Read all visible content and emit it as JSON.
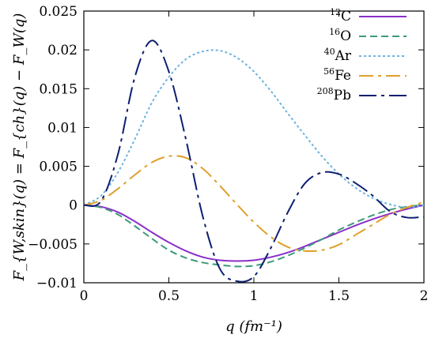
{
  "chart_data": {
    "type": "line",
    "xlabel": "q (fm⁻¹)",
    "ylabel": "F_{W,skin}(q) = F_{ch}(q) − F_W(q)",
    "xlim": [
      0,
      2
    ],
    "ylim": [
      -0.01,
      0.025
    ],
    "x_ticks": [
      0,
      0.5,
      1,
      1.5,
      2
    ],
    "x_tick_labels": [
      "0",
      "0.5",
      "1",
      "1.5",
      "2"
    ],
    "y_ticks": [
      -0.01,
      -0.005,
      0,
      0.005,
      0.01,
      0.015,
      0.02,
      0.025
    ],
    "y_tick_labels": [
      "−0.01",
      "−0.005",
      "0",
      "0.005",
      "0.01",
      "0.015",
      "0.02",
      "0.025"
    ],
    "grid": false,
    "legend_position": "top-right",
    "series": [
      {
        "name": "12C",
        "mass": "12",
        "element": "C",
        "color": "#8b2fc9",
        "dash": "",
        "x": [
          0,
          0.1,
          0.2,
          0.3,
          0.4,
          0.5,
          0.6,
          0.7,
          0.8,
          0.9,
          1.0,
          1.1,
          1.2,
          1.3,
          1.4,
          1.5,
          1.6,
          1.7,
          1.8,
          1.9,
          2.0
        ],
        "y": [
          0,
          -0.0002,
          -0.0009,
          -0.0021,
          -0.0035,
          -0.0048,
          -0.0059,
          -0.0067,
          -0.0071,
          -0.0072,
          -0.0071,
          -0.0067,
          -0.0061,
          -0.0053,
          -0.0044,
          -0.0035,
          -0.0026,
          -0.0018,
          -0.0011,
          -0.0005,
          0
        ]
      },
      {
        "name": "16O",
        "mass": "16",
        "element": "O",
        "color": "#3d9a7a",
        "dash": "9 5",
        "x": [
          0,
          0.1,
          0.2,
          0.3,
          0.4,
          0.5,
          0.6,
          0.7,
          0.8,
          0.9,
          1.0,
          1.1,
          1.2,
          1.3,
          1.4,
          1.5,
          1.6,
          1.7,
          1.8,
          1.9,
          2.0
        ],
        "y": [
          0,
          -0.0003,
          -0.0012,
          -0.0027,
          -0.0043,
          -0.0058,
          -0.0068,
          -0.0074,
          -0.0077,
          -0.0079,
          -0.0078,
          -0.0073,
          -0.0065,
          -0.0055,
          -0.0044,
          -0.0032,
          -0.0022,
          -0.0013,
          -0.0006,
          -0.0002,
          0
        ]
      },
      {
        "name": "40Ar",
        "mass": "40",
        "element": "Ar",
        "color": "#6cb4e0",
        "dash": "3 3",
        "x": [
          0,
          0.1,
          0.2,
          0.3,
          0.4,
          0.5,
          0.6,
          0.7,
          0.8,
          0.9,
          1.0,
          1.1,
          1.2,
          1.3,
          1.4,
          1.5,
          1.6,
          1.7,
          1.8,
          1.9,
          2.0
        ],
        "y": [
          0,
          0.0012,
          0.0042,
          0.0085,
          0.0132,
          0.0165,
          0.0188,
          0.0198,
          0.0199,
          0.019,
          0.0172,
          0.0147,
          0.0118,
          0.009,
          0.0063,
          0.004,
          0.0022,
          0.0009,
          0.0001,
          -0.0003,
          0
        ]
      },
      {
        "name": "56Fe",
        "mass": "56",
        "element": "Fe",
        "color": "#dea02a",
        "dash": "18 6 4 6",
        "x": [
          0,
          0.1,
          0.2,
          0.3,
          0.4,
          0.5,
          0.6,
          0.7,
          0.8,
          0.9,
          1.0,
          1.1,
          1.2,
          1.3,
          1.4,
          1.5,
          1.6,
          1.7,
          1.8,
          1.9,
          2.0
        ],
        "y": [
          0,
          0.0006,
          0.0021,
          0.0039,
          0.0055,
          0.0063,
          0.0061,
          0.0047,
          0.0025,
          0.0001,
          -0.0022,
          -0.0041,
          -0.0054,
          -0.0059,
          -0.0058,
          -0.0051,
          -0.0038,
          -0.0025,
          -0.0012,
          -0.0003,
          0.0004
        ]
      },
      {
        "name": "208Pb",
        "mass": "208",
        "element": "Pb",
        "color": "#0d1f70",
        "dash": "22 6 4 6",
        "x": [
          0,
          0.1,
          0.2,
          0.3,
          0.4,
          0.5,
          0.6,
          0.7,
          0.8,
          0.9,
          1.0,
          1.1,
          1.2,
          1.3,
          1.4,
          1.5,
          1.6,
          1.7,
          1.8,
          1.9,
          2.0
        ],
        "y": [
          0,
          0.0005,
          0.0065,
          0.0165,
          0.0212,
          0.0172,
          0.0085,
          -0.0015,
          -0.0082,
          -0.0098,
          -0.0092,
          -0.0055,
          -0.0009,
          0.0028,
          0.0042,
          0.004,
          0.0028,
          0.0012,
          -0.0008,
          -0.0016,
          -0.0015
        ]
      }
    ]
  }
}
